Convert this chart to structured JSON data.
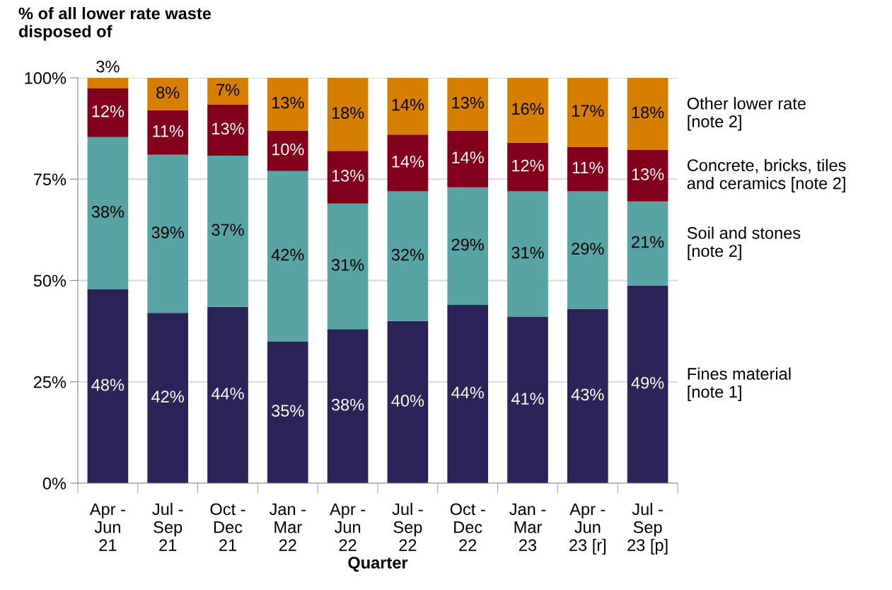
{
  "chart_data": {
    "type": "bar",
    "stacked": true,
    "ylabel": "% of all lower rate waste\ndisposed of",
    "xlabel": "Quarter",
    "categories": [
      "Apr -\nJun\n21",
      "Jul -\nSep\n21",
      "Oct -\nDec\n21",
      "Jan -\nMar\n22",
      "Apr -\nJun\n22",
      "Jul -\nSep\n22",
      "Oct -\nDec\n22",
      "Jan -\nMar\n23",
      "Apr -\nJun\n23 [r]",
      "Jul -\nSep\n23 [p]"
    ],
    "series": [
      {
        "name": "Fines material\n[note 1]",
        "color": "#2a2459",
        "values": [
          47.8,
          42,
          43.5,
          35,
          38,
          40,
          44,
          41,
          43,
          48.8
        ],
        "value_labels": [
          "48%",
          "42%",
          "44%",
          "35%",
          "38%",
          "40%",
          "44%",
          "41%",
          "43%",
          "49%"
        ]
      },
      {
        "name": "Soil and stones\n[note 2]",
        "color": "#58a3a3",
        "values": [
          37.6,
          39,
          37.3,
          42,
          31,
          32,
          29,
          31,
          29,
          20.7
        ],
        "value_labels": [
          "38%",
          "39%",
          "37%",
          "42%",
          "31%",
          "32%",
          "29%",
          "31%",
          "29%",
          "21%"
        ]
      },
      {
        "name": "Concrete, bricks, tiles\nand ceramics [note 2]",
        "color": "#82001c",
        "values": [
          12.0,
          11,
          12.6,
          10,
          13,
          14,
          14,
          12,
          11,
          12.7
        ],
        "value_labels": [
          "12%",
          "11%",
          "13%",
          "10%",
          "13%",
          "14%",
          "14%",
          "12%",
          "11%",
          "13%"
        ]
      },
      {
        "name": "Other lower rate\n[note 2]",
        "color": "#d67e00",
        "values": [
          2.6,
          8,
          6.6,
          13,
          18,
          14,
          13,
          16,
          17,
          17.8
        ],
        "value_labels": [
          "3%",
          "8%",
          "7%",
          "13%",
          "18%",
          "14%",
          "13%",
          "16%",
          "17%",
          "18%"
        ]
      }
    ],
    "ylim": [
      0,
      100
    ],
    "yticks": [
      {
        "value": 0,
        "label": "0%"
      },
      {
        "value": 25,
        "label": "25%"
      },
      {
        "value": 50,
        "label": "50%"
      },
      {
        "value": 75,
        "label": "75%"
      },
      {
        "value": 100,
        "label": "100%"
      }
    ],
    "grid": "y"
  }
}
